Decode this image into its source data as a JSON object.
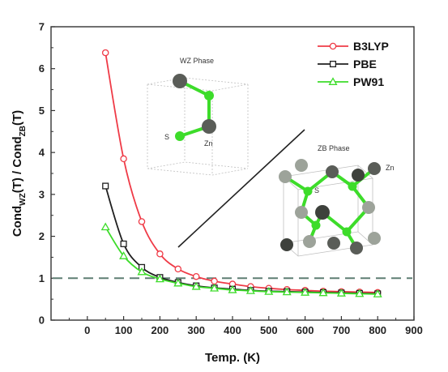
{
  "chart_data": {
    "type": "line",
    "xlabel": "Temp.  (K)",
    "ylabel": {
      "part1": "Cond",
      "sub1": "WZ",
      "part2": "(T) / Cond",
      "sub2": "ZB",
      "part3": "(T)"
    },
    "xlim": [
      -100,
      900
    ],
    "ylim": [
      0,
      7
    ],
    "xticks": [
      0,
      100,
      200,
      300,
      400,
      500,
      600,
      700,
      800,
      900
    ],
    "yticks": [
      0,
      1,
      2,
      3,
      4,
      5,
      6,
      7
    ],
    "x": [
      50,
      100,
      150,
      200,
      250,
      300,
      350,
      400,
      450,
      500,
      550,
      600,
      650,
      700,
      750,
      800
    ],
    "series": [
      {
        "name": "B3LYP",
        "color": "#ef3b47",
        "marker": "circle",
        "values": [
          6.38,
          3.85,
          2.35,
          1.58,
          1.22,
          1.04,
          0.93,
          0.86,
          0.8,
          0.76,
          0.73,
          0.71,
          0.69,
          0.68,
          0.67,
          0.66
        ]
      },
      {
        "name": "PBE",
        "color": "#1f1f1f",
        "marker": "square",
        "values": [
          3.2,
          1.82,
          1.26,
          1.02,
          0.9,
          0.82,
          0.77,
          0.74,
          0.71,
          0.69,
          0.68,
          0.67,
          0.66,
          0.65,
          0.64,
          0.63
        ]
      },
      {
        "name": "PW91",
        "color": "#3ddc2a",
        "marker": "triangle",
        "values": [
          2.22,
          1.53,
          1.15,
          0.98,
          0.88,
          0.8,
          0.76,
          0.72,
          0.7,
          0.68,
          0.67,
          0.66,
          0.65,
          0.64,
          0.63,
          0.62
        ]
      }
    ],
    "reference_line": {
      "y": 1,
      "style": "dashed",
      "color": "#5f7f73"
    },
    "legend_position": "top-right",
    "grid": false
  },
  "insets": {
    "wz_title": "WZ  Phase",
    "wz_s_label": "S",
    "wz_zn_label": "Zn",
    "zb_title": "ZB Phase",
    "zb_s_label": "S",
    "zb_zn_label": "Zn"
  },
  "colors": {
    "zn_atom": "#5a5d58",
    "s_atom": "#3ddc2a",
    "zn_light": "#9da39a"
  }
}
